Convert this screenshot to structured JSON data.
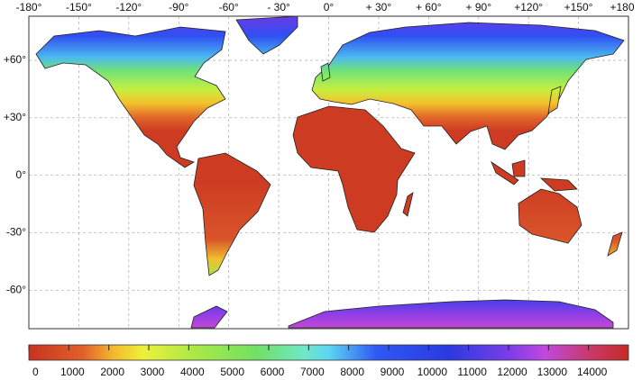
{
  "map": {
    "lon_lim": [
      -180,
      180
    ],
    "lat_lim": [
      -80,
      83
    ],
    "lon_ticks": [
      {
        "value": -180,
        "label": "-180°"
      },
      {
        "value": -150,
        "label": "-150°"
      },
      {
        "value": -120,
        "label": "-120°"
      },
      {
        "value": -90,
        "label": "-90°"
      },
      {
        "value": -60,
        "label": "-60°"
      },
      {
        "value": -30,
        "label": "- 30°"
      },
      {
        "value": 0,
        "label": "0°"
      },
      {
        "value": 30,
        "label": "+ 30°"
      },
      {
        "value": 60,
        "label": "+ 60°"
      },
      {
        "value": 90,
        "label": "+ 90°"
      },
      {
        "value": 120,
        "label": "+120°"
      },
      {
        "value": 150,
        "label": "+150°"
      },
      {
        "value": 180,
        "label": "+180"
      }
    ],
    "lat_ticks": [
      {
        "value": 60,
        "label": "+60°"
      },
      {
        "value": 30,
        "label": "+30°"
      },
      {
        "value": 0,
        "label": "0°"
      },
      {
        "value": -30,
        "label": "-30°"
      },
      {
        "value": -60,
        "label": "-60°"
      }
    ],
    "colorbar": {
      "lim": [
        0,
        15000
      ],
      "ticks": [
        0,
        1000,
        2000,
        3000,
        4000,
        5000,
        6000,
        7000,
        8000,
        9000,
        10000,
        11000,
        12000,
        13000,
        14000
      ]
    }
  }
}
